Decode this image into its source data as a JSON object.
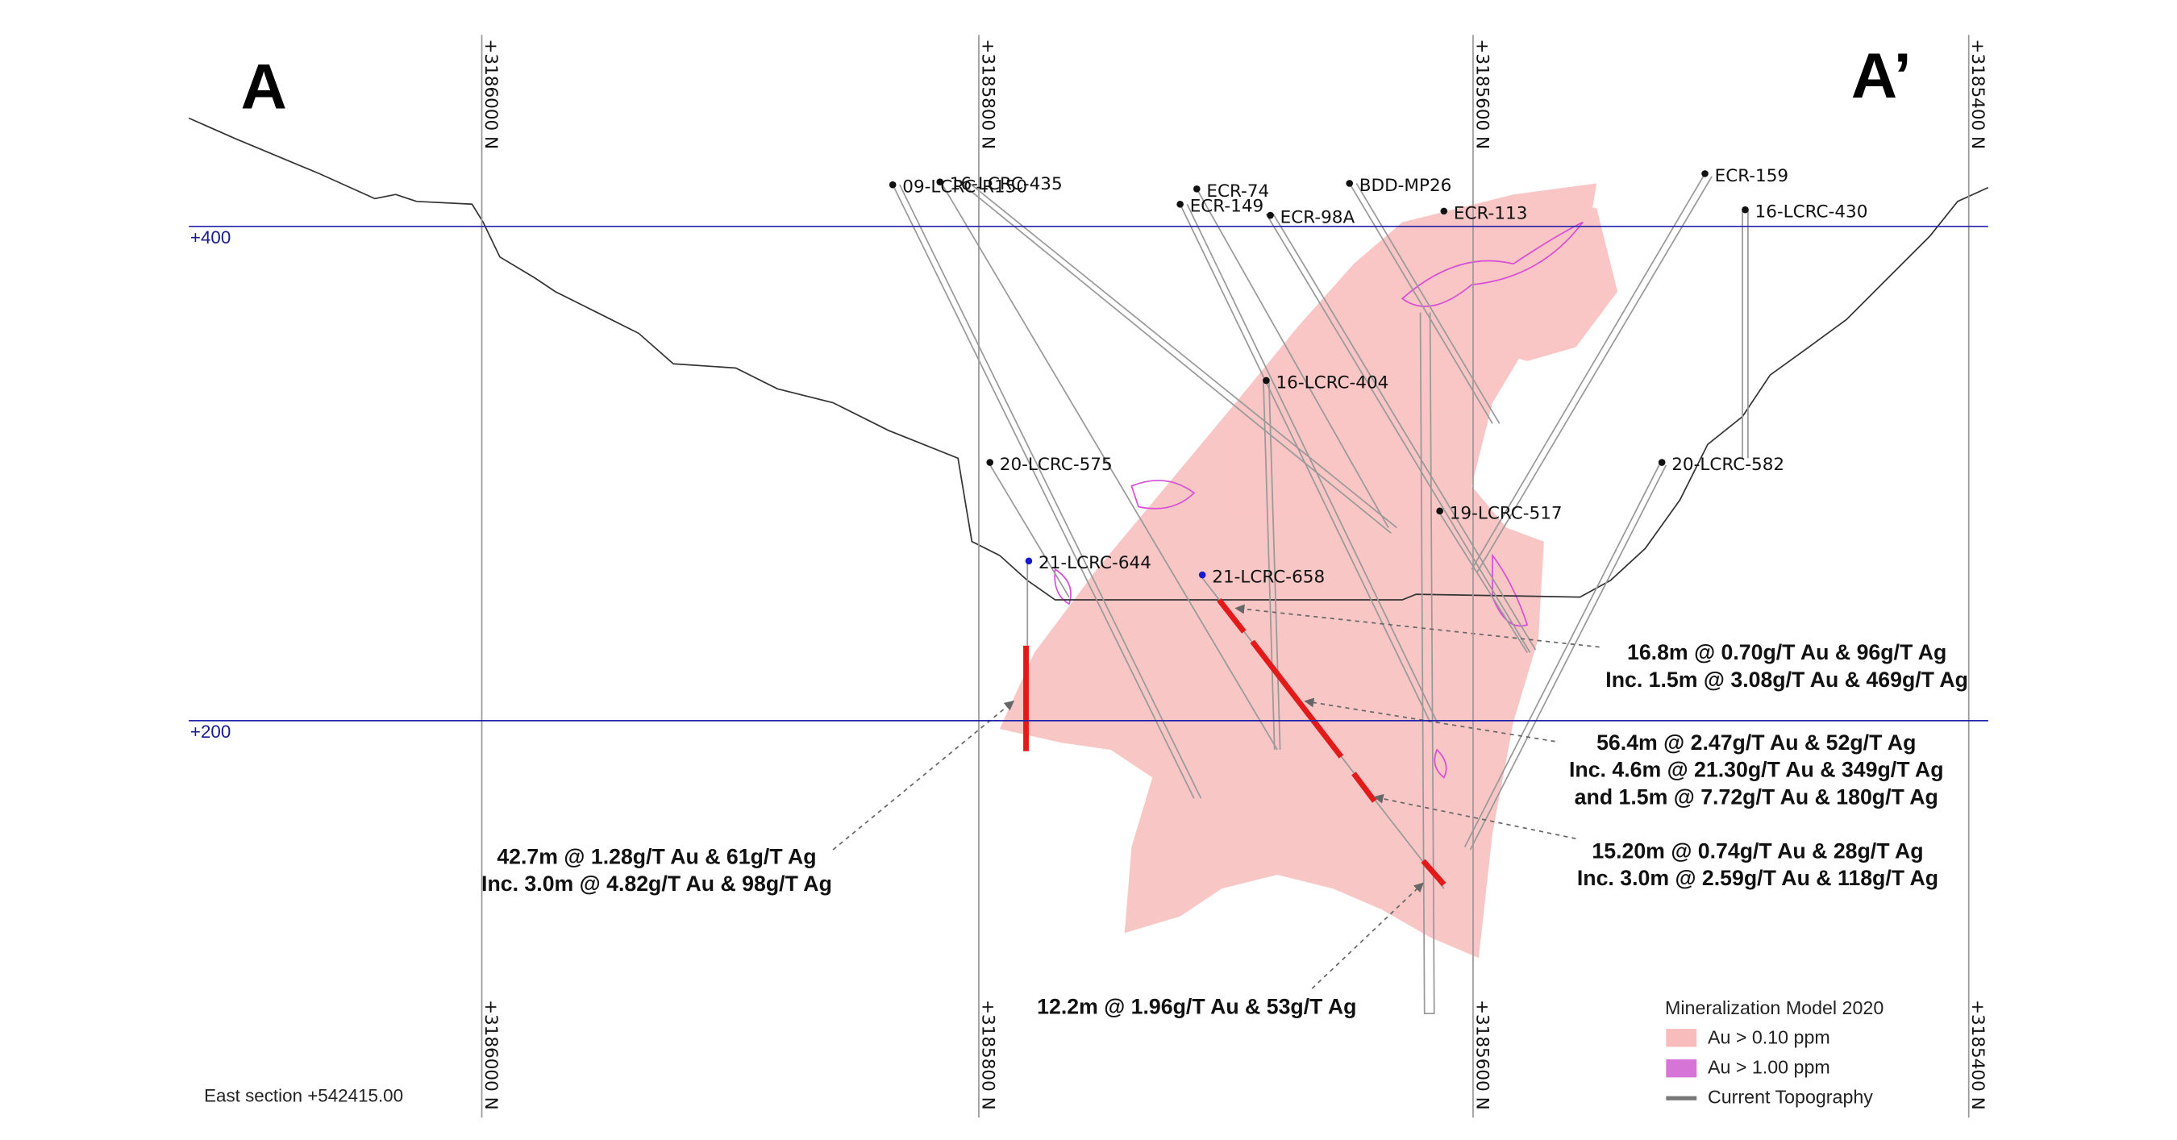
{
  "section_labels": [
    "A",
    "A’"
  ],
  "northings": [
    "+3186000 N",
    "+3185800 N",
    "+3185600 N",
    "+3185400 N"
  ],
  "elevations": [
    "+400",
    "+200"
  ],
  "holes": [
    "09-LCRC-R150",
    "16-LCRC-435",
    "ECR-74",
    "ECR-149",
    "ECR-98A",
    "BDD-MP26",
    "ECR-113",
    "ECR-159",
    "16-LCRC-430",
    "16-LCRC-404",
    "20-LCRC-575",
    "20-LCRC-582",
    "19-LCRC-517",
    "21-LCRC-644",
    "21-LCRC-658"
  ],
  "intercepts": [
    {
      "lines": [
        "16.8m @ 0.70g/T Au & 96g/T Ag",
        "Inc. 1.5m @ 3.08g/T Au & 469g/T Ag"
      ]
    },
    {
      "lines": [
        "56.4m @ 2.47g/T Au & 52g/T Ag",
        "Inc. 4.6m @ 21.30g/T Au & 349g/T Ag",
        "and 1.5m @ 7.72g/T Au & 180g/T Ag"
      ]
    },
    {
      "lines": [
        "15.20m @ 0.74g/T Au & 28g/T Ag",
        "Inc. 3.0m @ 2.59g/T Au & 118g/T Ag"
      ]
    },
    {
      "lines": [
        "42.7m @ 1.28g/T Au & 61g/T Ag",
        "Inc. 3.0m @ 4.82g/T Au & 98g/T Ag"
      ]
    },
    {
      "lines": [
        "12.2m @ 1.96g/T Au & 53g/T Ag"
      ]
    }
  ],
  "legend": {
    "title": "Mineralization Model 2020",
    "items": [
      "Au > 0.10 ppm",
      "Au > 1.00 ppm",
      "Current Topography"
    ]
  },
  "section_note": "East section +542415.00"
}
